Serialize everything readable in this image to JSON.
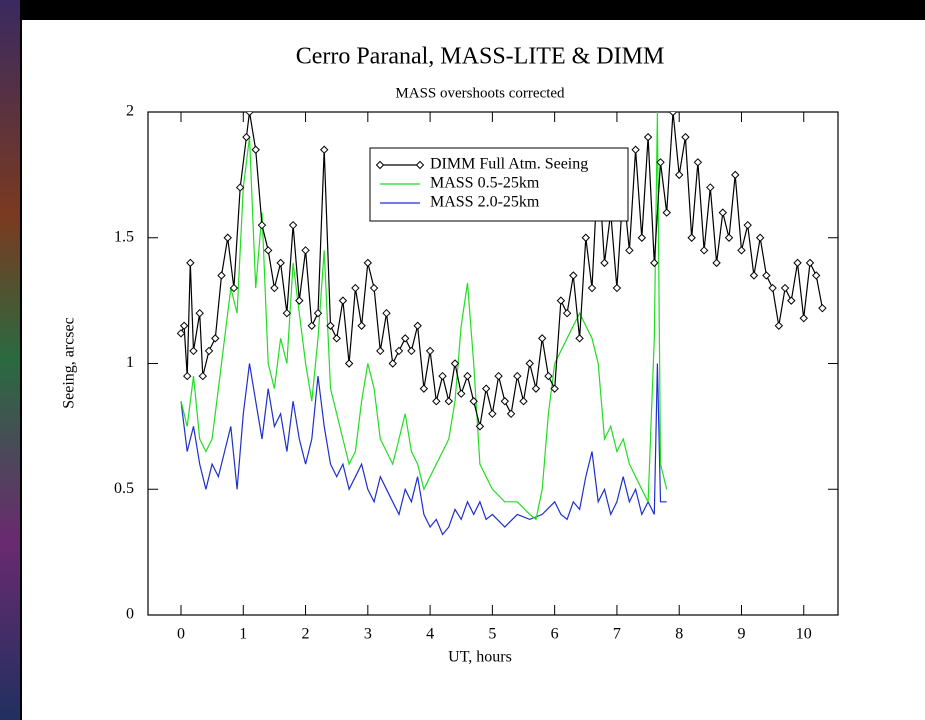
{
  "chart_data": {
    "type": "line",
    "title": "Cerro Paranal, MASS-LITE & DIMM",
    "subtitle": "MASS overshoots corrected",
    "x_label": "UT, hours",
    "y_label": "Seeing, arcsec",
    "xlim": [
      -0.53,
      10.55
    ],
    "ylim": [
      0,
      2
    ],
    "xticks": [
      0,
      1,
      2,
      3,
      4,
      5,
      6,
      7,
      8,
      9,
      10
    ],
    "yticks": [
      0,
      0.5,
      1,
      1.5,
      2
    ],
    "grid": false,
    "legend": "top-center",
    "series": [
      {
        "name": "DIMM Full Atm. Seeing",
        "color": "#000000",
        "marker": "diamond",
        "x": [
          0.0,
          0.05,
          0.1,
          0.15,
          0.2,
          0.3,
          0.35,
          0.45,
          0.55,
          0.65,
          0.75,
          0.85,
          0.95,
          1.05,
          1.1,
          1.2,
          1.3,
          1.4,
          1.5,
          1.6,
          1.7,
          1.8,
          1.9,
          2.0,
          2.1,
          2.2,
          2.3,
          2.4,
          2.5,
          2.6,
          2.7,
          2.8,
          2.9,
          3.0,
          3.1,
          3.2,
          3.3,
          3.4,
          3.5,
          3.6,
          3.7,
          3.8,
          3.9,
          4.0,
          4.1,
          4.2,
          4.3,
          4.4,
          4.5,
          4.6,
          4.7,
          4.8,
          4.9,
          5.0,
          5.1,
          5.2,
          5.3,
          5.4,
          5.5,
          5.6,
          5.7,
          5.8,
          5.9,
          6.0,
          6.1,
          6.2,
          6.3,
          6.4,
          6.5,
          6.6,
          6.7,
          6.8,
          6.9,
          7.0,
          7.1,
          7.2,
          7.3,
          7.4,
          7.5,
          7.6,
          7.7,
          7.8,
          7.9,
          8.0,
          8.1,
          8.2,
          8.3,
          8.4,
          8.5,
          8.6,
          8.7,
          8.8,
          8.9,
          9.0,
          9.1,
          9.2,
          9.3,
          9.4,
          9.5,
          9.6,
          9.7,
          9.8,
          9.9,
          10.0,
          10.1,
          10.2,
          10.3
        ],
        "values": [
          1.12,
          1.15,
          0.95,
          1.4,
          1.05,
          1.2,
          0.95,
          1.05,
          1.1,
          1.35,
          1.5,
          1.3,
          1.7,
          1.9,
          2.0,
          1.85,
          1.55,
          1.45,
          1.3,
          1.4,
          1.2,
          1.55,
          1.25,
          1.45,
          1.15,
          1.2,
          1.85,
          1.15,
          1.1,
          1.25,
          1.0,
          1.3,
          1.15,
          1.4,
          1.3,
          1.05,
          1.2,
          1.0,
          1.05,
          1.1,
          1.05,
          1.15,
          0.9,
          1.05,
          0.85,
          0.95,
          0.85,
          1.0,
          0.88,
          0.95,
          0.85,
          0.75,
          0.9,
          0.8,
          0.95,
          0.85,
          0.8,
          0.95,
          0.85,
          1.0,
          0.9,
          1.1,
          0.95,
          0.9,
          1.25,
          1.2,
          1.35,
          1.1,
          1.5,
          1.3,
          1.8,
          1.4,
          1.6,
          1.3,
          1.7,
          1.45,
          1.85,
          1.5,
          1.9,
          1.4,
          1.8,
          1.6,
          2.0,
          1.75,
          1.9,
          1.5,
          1.8,
          1.45,
          1.7,
          1.4,
          1.6,
          1.5,
          1.75,
          1.45,
          1.55,
          1.35,
          1.5,
          1.35,
          1.3,
          1.15,
          1.3,
          1.25,
          1.4,
          1.18,
          1.4,
          1.35,
          1.22
        ]
      },
      {
        "name": "MASS 0.5-25km",
        "color": "#22dd22",
        "x": [
          0.0,
          0.1,
          0.2,
          0.3,
          0.4,
          0.5,
          0.6,
          0.7,
          0.8,
          0.9,
          1.0,
          1.1,
          1.2,
          1.3,
          1.4,
          1.5,
          1.6,
          1.7,
          1.8,
          1.9,
          2.0,
          2.1,
          2.2,
          2.3,
          2.4,
          2.5,
          2.6,
          2.7,
          2.8,
          2.9,
          3.0,
          3.1,
          3.2,
          3.3,
          3.4,
          3.5,
          3.6,
          3.7,
          3.8,
          3.9,
          4.0,
          4.1,
          4.2,
          4.3,
          4.4,
          4.5,
          4.6,
          4.7,
          4.8,
          4.9,
          5.0,
          5.2,
          5.4,
          5.6,
          5.7,
          5.8,
          5.9,
          6.0,
          6.1,
          6.2,
          6.3,
          6.4,
          6.5,
          6.6,
          6.7,
          6.8,
          6.9,
          7.0,
          7.1,
          7.2,
          7.3,
          7.4,
          7.5,
          7.6,
          7.65,
          7.7,
          7.8
        ],
        "values": [
          0.85,
          0.75,
          0.95,
          0.7,
          0.65,
          0.7,
          0.9,
          1.1,
          1.3,
          1.2,
          1.7,
          1.9,
          1.3,
          1.6,
          1.0,
          0.9,
          1.1,
          1.0,
          1.4,
          1.2,
          1.0,
          0.85,
          1.1,
          1.45,
          0.9,
          0.8,
          0.7,
          0.6,
          0.65,
          0.85,
          1.0,
          0.9,
          0.7,
          0.65,
          0.6,
          0.7,
          0.8,
          0.65,
          0.6,
          0.5,
          0.55,
          0.6,
          0.65,
          0.7,
          0.85,
          1.15,
          1.32,
          1.0,
          0.6,
          0.55,
          0.5,
          0.45,
          0.45,
          0.4,
          0.38,
          0.5,
          0.8,
          1.0,
          1.05,
          1.1,
          1.15,
          1.2,
          1.15,
          1.1,
          1.0,
          0.7,
          0.75,
          0.65,
          0.7,
          0.6,
          0.55,
          0.5,
          0.45,
          1.1,
          2.0,
          0.6,
          0.5
        ]
      },
      {
        "name": "MASS 2.0-25km",
        "color": "#1f2fcc",
        "x": [
          0.0,
          0.1,
          0.2,
          0.3,
          0.4,
          0.5,
          0.6,
          0.7,
          0.8,
          0.9,
          1.0,
          1.1,
          1.2,
          1.3,
          1.4,
          1.5,
          1.6,
          1.7,
          1.8,
          1.9,
          2.0,
          2.1,
          2.2,
          2.3,
          2.4,
          2.5,
          2.6,
          2.7,
          2.8,
          2.9,
          3.0,
          3.1,
          3.2,
          3.3,
          3.4,
          3.5,
          3.6,
          3.7,
          3.8,
          3.9,
          4.0,
          4.1,
          4.2,
          4.3,
          4.4,
          4.5,
          4.6,
          4.7,
          4.8,
          4.9,
          5.0,
          5.2,
          5.4,
          5.6,
          5.8,
          6.0,
          6.1,
          6.2,
          6.3,
          6.4,
          6.5,
          6.6,
          6.7,
          6.8,
          6.9,
          7.0,
          7.1,
          7.2,
          7.3,
          7.4,
          7.5,
          7.6,
          7.65,
          7.7,
          7.8
        ],
        "values": [
          0.85,
          0.65,
          0.75,
          0.6,
          0.5,
          0.6,
          0.55,
          0.65,
          0.75,
          0.5,
          0.8,
          1.0,
          0.85,
          0.7,
          0.9,
          0.75,
          0.8,
          0.65,
          0.85,
          0.7,
          0.6,
          0.7,
          0.95,
          0.75,
          0.6,
          0.55,
          0.6,
          0.5,
          0.55,
          0.6,
          0.5,
          0.45,
          0.55,
          0.5,
          0.45,
          0.4,
          0.5,
          0.45,
          0.55,
          0.4,
          0.35,
          0.38,
          0.32,
          0.35,
          0.42,
          0.38,
          0.45,
          0.4,
          0.45,
          0.38,
          0.4,
          0.35,
          0.4,
          0.38,
          0.4,
          0.45,
          0.4,
          0.38,
          0.45,
          0.42,
          0.55,
          0.65,
          0.45,
          0.5,
          0.4,
          0.45,
          0.55,
          0.45,
          0.5,
          0.4,
          0.45,
          0.4,
          1.0,
          0.45,
          0.45
        ]
      }
    ]
  }
}
